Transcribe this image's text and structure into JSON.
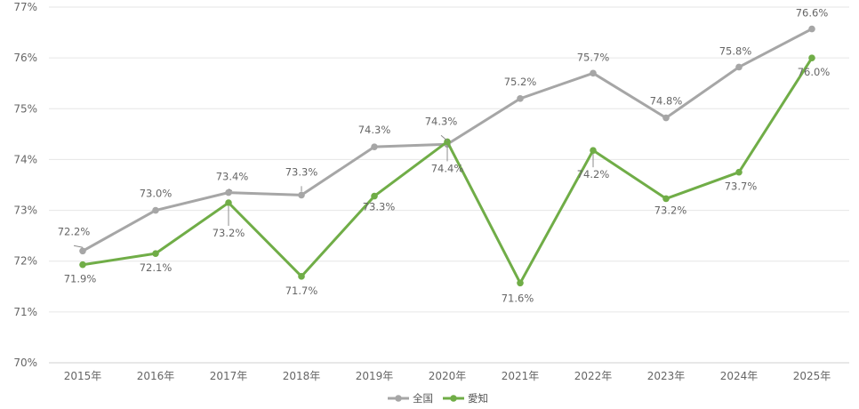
{
  "chart_data": {
    "type": "line",
    "title": "",
    "xlabel": "",
    "ylabel": "",
    "categories": [
      "2015年",
      "2016年",
      "2017年",
      "2018年",
      "2019年",
      "2020年",
      "2021年",
      "2022年",
      "2023年",
      "2024年",
      "2025年"
    ],
    "ylim": [
      70,
      77
    ],
    "yticks": [
      "70%",
      "71%",
      "72%",
      "73%",
      "74%",
      "75%",
      "76%",
      "77%"
    ],
    "grid": true,
    "legend_position": "bottom",
    "series": [
      {
        "name": "全国",
        "color": "#a6a6a6",
        "values": [
          72.2,
          73.0,
          73.35,
          73.3,
          74.25,
          74.3,
          75.2,
          75.7,
          74.82,
          75.82,
          76.57
        ],
        "labels": [
          "72.2%",
          "73.0%",
          "73.4%",
          "73.3%",
          "74.3%",
          "74.3%",
          "75.2%",
          "75.7%",
          "74.8%",
          "75.8%",
          "76.6%"
        ]
      },
      {
        "name": "愛知",
        "color": "#70ad47",
        "values": [
          71.93,
          72.15,
          73.15,
          71.7,
          73.28,
          74.35,
          71.57,
          74.18,
          73.23,
          73.75,
          76.0
        ],
        "labels": [
          "71.9%",
          "72.1%",
          "73.2%",
          "71.7%",
          "73.3%",
          "74.4%",
          "71.6%",
          "74.2%",
          "73.2%",
          "73.7%",
          "76.0%"
        ]
      }
    ]
  }
}
